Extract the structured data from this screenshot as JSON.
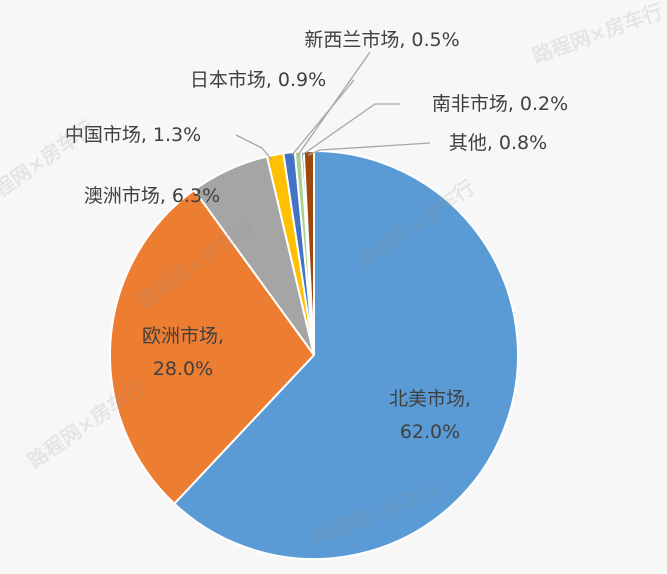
{
  "chart_data": {
    "type": "pie",
    "start": "top",
    "direction": "clockwise",
    "slices": [
      {
        "label": "北美市场",
        "value": 62.0,
        "text": [
          "北美市场,",
          "62.0%"
        ],
        "color": "#5B9BD5"
      },
      {
        "label": "欧洲市场",
        "value": 28.0,
        "text": [
          "欧洲市场,",
          "28.0%"
        ],
        "color": "#ED7D31"
      },
      {
        "label": "澳洲市场",
        "value": 6.3,
        "text": [
          "澳洲市场, 6.3%"
        ],
        "color": "#A5A5A5"
      },
      {
        "label": "中国市场",
        "value": 1.3,
        "text": [
          "中国市场, 1.3%"
        ],
        "color": "#FFC000"
      },
      {
        "label": "日本市场",
        "value": 0.9,
        "text": [
          "日本市场, 0.9%"
        ],
        "color": "#4472C4"
      },
      {
        "label": "新西兰市场",
        "value": 0.5,
        "text": [
          "新西兰市场, 0.5%"
        ],
        "color": "#A9D18E"
      },
      {
        "label": "南非市场",
        "value": 0.2,
        "text": [
          "南非市场, 0.2%"
        ],
        "color": "#264478"
      },
      {
        "label": "其他",
        "value": 0.8,
        "text": [
          "其他, 0.8%"
        ],
        "color": "#9E480E"
      }
    ],
    "watermark": "路程网×房车行"
  }
}
